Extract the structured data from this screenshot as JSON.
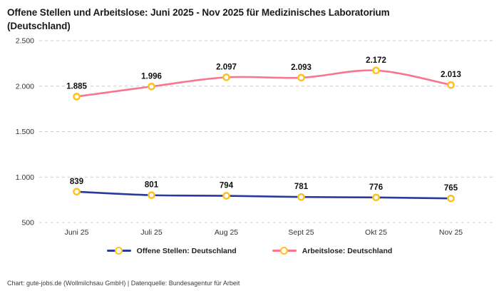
{
  "title": "Offene Stellen und Arbeitslose: Juni 2025 - Nov 2025 für Medizinisches Laboratorium (Deutschland)",
  "footer": "Chart: gute-jobs.de (Wollmilchsau GmbH) | Datenquelle: Bundesagentur für Arbeit",
  "chart_data": {
    "type": "line",
    "title": "Offene Stellen und Arbeitslose: Juni 2025 - Nov 2025 für Medizinisches Laboratorium (Deutschland)",
    "categories": [
      "Juni 25",
      "Juli 25",
      "Aug 25",
      "Sept 25",
      "Okt 25",
      "Nov 25"
    ],
    "series": [
      {
        "name": "Offene Stellen: Deutschland",
        "color": "#293a9b",
        "values": [
          839,
          801,
          794,
          781,
          776,
          765
        ],
        "labels": [
          "839",
          "801",
          "794",
          "781",
          "776",
          "765"
        ]
      },
      {
        "name": "Arbeitslose: Deutschland",
        "color": "#f8758f",
        "values": [
          1885,
          1996,
          2097,
          2093,
          2172,
          2013
        ],
        "labels": [
          "1.885",
          "1.996",
          "2.097",
          "2.093",
          "2.172",
          "2.013"
        ]
      }
    ],
    "y_ticks": [
      {
        "value": 2500,
        "label": "2.500"
      },
      {
        "value": 2000,
        "label": "2.000"
      },
      {
        "value": 1500,
        "label": "1.500"
      },
      {
        "value": 1000,
        "label": "1.000"
      },
      {
        "value": 500,
        "label": "500"
      }
    ],
    "ylim": [
      500,
      2500
    ],
    "grid": "horizontal-dashed",
    "legend_position": "bottom",
    "marker": {
      "shape": "circle",
      "stroke": "#fdc220",
      "fill": "#ffffff"
    },
    "colors": {
      "grid": "#cccccc",
      "tick_text": "#333333",
      "data_label": "#111111",
      "marker_ring": "#fdc220"
    }
  }
}
